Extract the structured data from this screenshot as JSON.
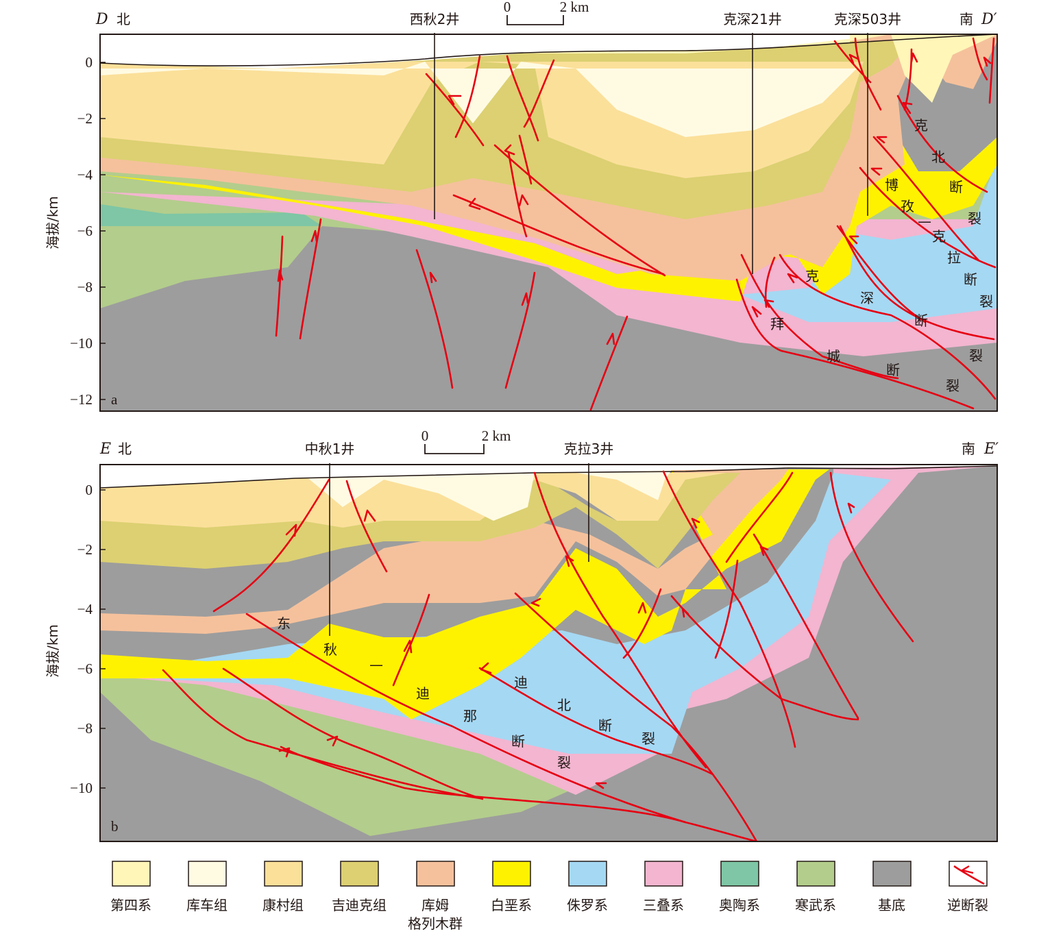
{
  "panel_a": {
    "tag": "a",
    "start_label": "D",
    "north": "北",
    "south": "南",
    "end_label": "D′",
    "scale_zero": "0",
    "scale_label": "2 km",
    "wells": [
      "西秋2井",
      "克深21井",
      "克深503井"
    ],
    "y_axis_title": "海拔/km",
    "y_ticks": [
      "0",
      "−2",
      "−4",
      "−6",
      "−8",
      "−10",
      "−12"
    ],
    "fault_names": {
      "bai_cheng": [
        "拜",
        "城",
        "断",
        "裂"
      ],
      "ke_shen": [
        "克",
        "深",
        "断",
        "裂"
      ],
      "ke_bei": [
        "克",
        "北",
        "断",
        "裂"
      ],
      "bozi_kela": [
        "博",
        "孜",
        "—",
        "克",
        "拉",
        "断",
        "裂"
      ]
    }
  },
  "panel_b": {
    "tag": "b",
    "start_label": "E",
    "north": "北",
    "south": "南",
    "end_label": "E′",
    "scale_zero": "0",
    "scale_label": "2 km",
    "wells": [
      "中秋1井",
      "克拉3井"
    ],
    "y_axis_title": "海拔/km",
    "y_ticks": [
      "0",
      "−2",
      "−4",
      "−6",
      "−8",
      "−10"
    ],
    "fault_names": {
      "dongqiu_dina": [
        "东",
        "秋",
        "—",
        "迪",
        "那",
        "断",
        "裂"
      ],
      "dibei": [
        "迪",
        "北",
        "断",
        "裂"
      ]
    }
  },
  "legend": [
    {
      "label": "第四系",
      "color": "#fff6b8"
    },
    {
      "label": "库车组",
      "color": "#fffbe3"
    },
    {
      "label": "康村组",
      "color": "#fbe09a"
    },
    {
      "label": "吉迪克组",
      "color": "#dcd072"
    },
    {
      "label": "库姆\n格列木群",
      "color": "#f5c19c"
    },
    {
      "label": "白垩系",
      "color": "#fff200"
    },
    {
      "label": "侏罗系",
      "color": "#a5d8f3"
    },
    {
      "label": "三叠系",
      "color": "#f3b5d0"
    },
    {
      "label": "奥陶系",
      "color": "#7ec6a5"
    },
    {
      "label": "寒武系",
      "color": "#b3cd8c"
    },
    {
      "label": "基底",
      "color": "#9d9d9d"
    },
    {
      "label": "逆断裂",
      "color": "#e60012"
    }
  ]
}
